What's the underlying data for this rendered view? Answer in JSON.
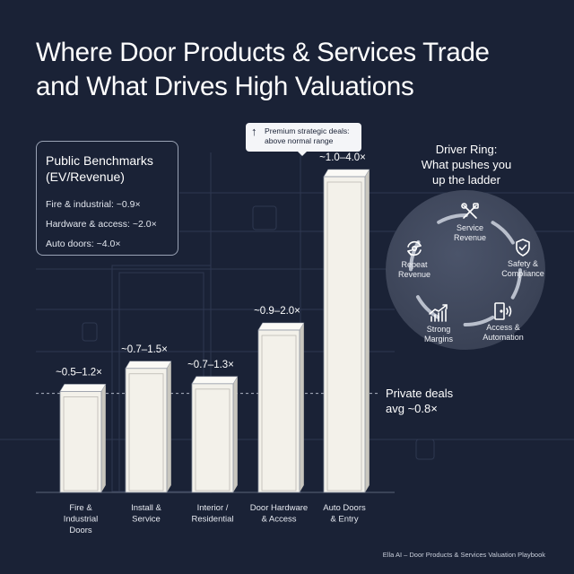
{
  "title": {
    "line1": "Where Door Products & Services Trade",
    "line2": "and What Drives High Valuations"
  },
  "benchmarks": {
    "title_line1": "Public Benchmarks",
    "title_line2": "(EV/Revenue)",
    "items": [
      "Fire & industrial: ~0.9×",
      "Hardware & access: ~2.0×",
      "Auto doors: ~4.0×"
    ]
  },
  "callout": {
    "line1": "Premium strategic deals:",
    "line2": "above normal range",
    "icon": "up-arrow-icon"
  },
  "chart_data": {
    "type": "bar",
    "categories": [
      [
        "Fire &",
        "Industrial",
        "Doors"
      ],
      [
        "Install &",
        "Service"
      ],
      [
        "Interior /",
        "Residential"
      ],
      [
        "Door Hardware",
        "& Access"
      ],
      [
        "Auto Doors",
        "& Entry"
      ]
    ],
    "range_labels": [
      "~0.5–1.2×",
      "~0.7–1.5×",
      "~0.7–1.3×",
      "~0.9–2.0×",
      "~1.0–4.0×"
    ],
    "ranges": [
      [
        0.5,
        1.2
      ],
      [
        0.7,
        1.5
      ],
      [
        0.7,
        1.3
      ],
      [
        0.9,
        2.0
      ],
      [
        1.0,
        4.0
      ]
    ],
    "reference_line": {
      "value": 0.8,
      "label_line1": "Private deals",
      "label_line2": "avg ~0.8×"
    },
    "bar_color": "#f3f1ea"
  },
  "driver_ring": {
    "title_line1": "Driver Ring:",
    "title_line2": "What pushes you",
    "title_line3": "up the ladder",
    "items": [
      {
        "line1": "Service",
        "line2": "Revenue",
        "icon": "wrench-screwdriver-icon"
      },
      {
        "line1": "Safety &",
        "line2": "Compliance",
        "icon": "shield-check-icon"
      },
      {
        "line1": "Access &",
        "line2": "Automation",
        "icon": "door-signal-icon"
      },
      {
        "line1": "Strong",
        "line2": "Margins",
        "icon": "chart-trend-icon"
      },
      {
        "line1": "Repeat",
        "line2": "Revenue",
        "icon": "repeat-cycle-icon"
      }
    ]
  },
  "footer": "Ella AI – Door Products & Services Valuation Playbook",
  "colors": {
    "background": "#1a2236",
    "bar": "#f3f1ea",
    "ring": "#3f4759",
    "text": "#ffffff"
  }
}
